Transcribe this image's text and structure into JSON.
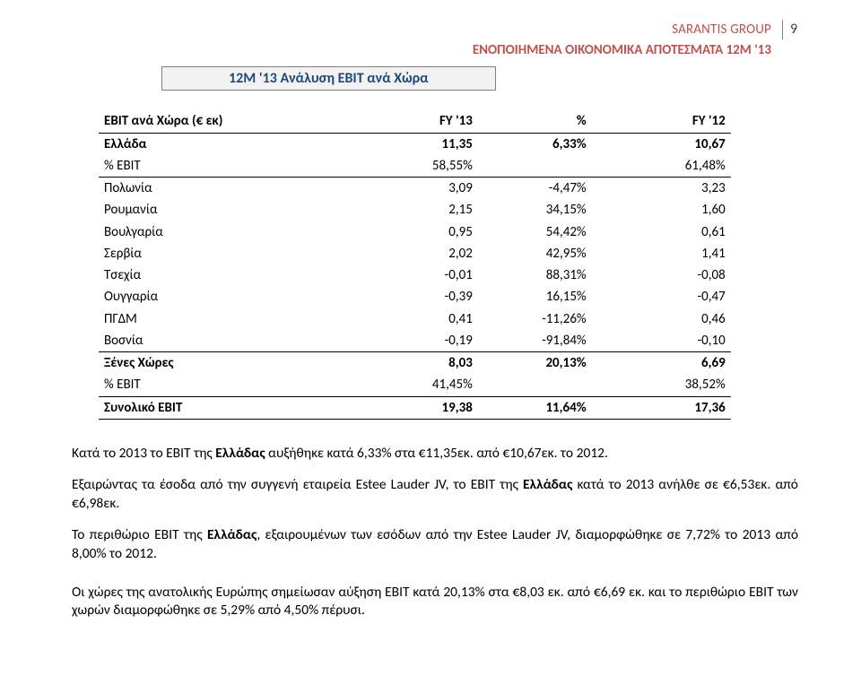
{
  "header": {
    "company": "SARANTIS GROUP",
    "page_number": "9",
    "subtitle": "ΕΝΟΠΟΙΗΜΕΝΑ ΟΙΚΟΝΟΜΙΚΑ ΑΠΟΤΕΣΜΑΤΑ 12Μ '13"
  },
  "section_title": "12Μ '13 Ανάλυση EBIT ανά Χώρα",
  "table": {
    "columns": [
      "EBIT ανά Χώρα (€ εκ)",
      "FY '13",
      "%",
      "FY '12"
    ],
    "rows": [
      {
        "style": "bold top-border",
        "cells": [
          "Ελλάδα",
          "11,35",
          "6,33%",
          "10,67"
        ]
      },
      {
        "style": "bottom-border",
        "cells": [
          "% ΕΒΙΤ",
          "58,55%",
          "",
          "61,48%"
        ]
      },
      {
        "style": "",
        "cells": [
          "Πολωνία",
          "3,09",
          "-4,47%",
          "3,23"
        ]
      },
      {
        "style": "",
        "cells": [
          "Ρουμανία",
          "2,15",
          "34,15%",
          "1,60"
        ]
      },
      {
        "style": "",
        "cells": [
          "Βουλγαρία",
          "0,95",
          "54,42%",
          "0,61"
        ]
      },
      {
        "style": "",
        "cells": [
          "Σερβία",
          "2,02",
          "42,95%",
          "1,41"
        ]
      },
      {
        "style": "",
        "cells": [
          "Τσεχία",
          "-0,01",
          "88,31%",
          "-0,08"
        ]
      },
      {
        "style": "",
        "cells": [
          "Ουγγαρία",
          "-0,39",
          "16,15%",
          "-0,47"
        ]
      },
      {
        "style": "",
        "cells": [
          "ΠΓΔΜ",
          "0,41",
          "-11,26%",
          "0,46"
        ]
      },
      {
        "style": "",
        "cells": [
          "Βοσνία",
          "-0,19",
          "-91,84%",
          "-0,10"
        ]
      },
      {
        "style": "bold top-border",
        "cells": [
          "Ξένες Χώρες",
          "8,03",
          "20,13%",
          "6,69"
        ]
      },
      {
        "style": "bottom-border",
        "cells": [
          "% ΕΒΙΤ",
          "41,45%",
          "",
          "38,52%"
        ]
      },
      {
        "style": "bold bottom-border",
        "cells": [
          "Συνολικό ΕΒΙΤ",
          "19,38",
          "11,64%",
          "17,36"
        ]
      }
    ]
  },
  "paragraphs": [
    "Κατά το 2013 το ΕΒΙΤ της Ελλάδας αυξήθηκε κατά 6,33% στα €11,35εκ. από €10,67εκ. το 2012.",
    "Εξαιρώντας τα έσοδα από την συγγενή εταιρεία Estee Lauder JV, το ΕΒΙΤ της Ελλάδας κατά το 2013 ανήλθε σε €6,53εκ. από €6,98εκ.",
    "Το περιθώριο ΕΒΙΤ της Ελλάδας, εξαιρουμένων των εσόδων από την Estee Lauder JV, διαμορφώθηκε σε 7,72% το 2013 από 8,00% το 2012.",
    "Οι χώρες της ανατολικής Ευρώπης σημείωσαν αύξηση ΕΒΙΤ κατά 20,13% στα €8,03 εκ. από €6,69 εκ. και το περιθώριο ΕΒΙΤ των χωρών διαμορφώθηκε σε 5,29% από 4,50% πέρυσι."
  ],
  "bold_words": [
    "Ελλάδας"
  ]
}
